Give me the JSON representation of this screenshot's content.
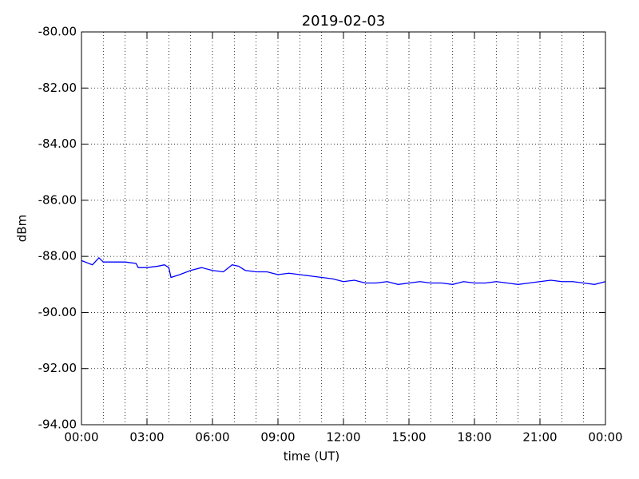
{
  "chart_data": {
    "type": "line",
    "title": "2019-02-03",
    "xlabel": "time (UT)",
    "ylabel": "dBm",
    "x": [
      0,
      0.5,
      0.8,
      1,
      1.5,
      2,
      2.5,
      2.6,
      3,
      3.5,
      3.8,
      4,
      4.1,
      4.5,
      5,
      5.5,
      6,
      6.5,
      6.9,
      7.2,
      7.5,
      8,
      8.5,
      9,
      9.5,
      10,
      10.5,
      11,
      11.5,
      12,
      12.5,
      13,
      13.5,
      14,
      14.5,
      15,
      15.5,
      16,
      16.5,
      17,
      17.5,
      18,
      18.5,
      19,
      19.5,
      20,
      20.5,
      21,
      21.5,
      22,
      22.5,
      23,
      23.5,
      24
    ],
    "series": [
      {
        "name": "dBm",
        "color": "#0000ff",
        "values": [
          -88.15,
          -88.3,
          -88.05,
          -88.2,
          -88.2,
          -88.2,
          -88.25,
          -88.4,
          -88.4,
          -88.35,
          -88.3,
          -88.4,
          -88.75,
          -88.65,
          -88.5,
          -88.4,
          -88.5,
          -88.55,
          -88.3,
          -88.35,
          -88.5,
          -88.55,
          -88.55,
          -88.65,
          -88.6,
          -88.65,
          -88.7,
          -88.75,
          -88.8,
          -88.9,
          -88.85,
          -88.95,
          -88.95,
          -88.9,
          -89.0,
          -88.95,
          -88.9,
          -88.95,
          -88.95,
          -89.0,
          -88.9,
          -88.95,
          -88.95,
          -88.9,
          -88.95,
          -89.0,
          -88.95,
          -88.9,
          -88.85,
          -88.9,
          -88.9,
          -88.95,
          -89.0,
          -88.9
        ]
      }
    ],
    "xlim": [
      0,
      24
    ],
    "xticks": [
      {
        "value": 0,
        "label": "00:00"
      },
      {
        "value": 3,
        "label": "03:00"
      },
      {
        "value": 6,
        "label": "06:00"
      },
      {
        "value": 9,
        "label": "09:00"
      },
      {
        "value": 12,
        "label": "12:00"
      },
      {
        "value": 15,
        "label": "15:00"
      },
      {
        "value": 18,
        "label": "18:00"
      },
      {
        "value": 21,
        "label": "21:00"
      },
      {
        "value": 24,
        "label": "00:00"
      }
    ],
    "minor_xticks": [
      1,
      2,
      4,
      5,
      7,
      8,
      10,
      11,
      13,
      14,
      16,
      17,
      19,
      20,
      22,
      23
    ],
    "ylim": [
      -94,
      -80
    ],
    "yticks": [
      {
        "value": -94,
        "label": "-94.00"
      },
      {
        "value": -92,
        "label": "-92.00"
      },
      {
        "value": -90,
        "label": "-90.00"
      },
      {
        "value": -88,
        "label": "-88.00"
      },
      {
        "value": -86,
        "label": "-86.00"
      },
      {
        "value": -84,
        "label": "-84.00"
      },
      {
        "value": -82,
        "label": "-82.00"
      },
      {
        "value": -80,
        "label": "-80.00"
      }
    ],
    "grid": true
  }
}
